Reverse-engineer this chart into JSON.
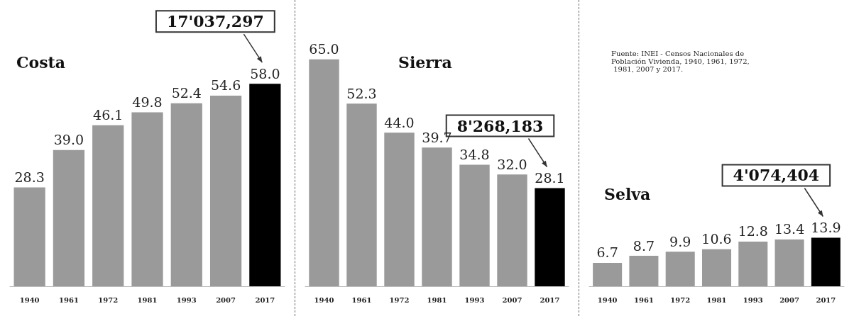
{
  "chart_data": [
    {
      "type": "bar",
      "title": "Costa",
      "categories": [
        "1940",
        "1961",
        "1972",
        "1981",
        "1993",
        "2007",
        "2017"
      ],
      "values": [
        28.3,
        39.0,
        46.1,
        49.8,
        52.4,
        54.6,
        58.0
      ],
      "value_labels": [
        "28.3",
        "39.0",
        "46.1",
        "49.8",
        "52.4",
        "54.6",
        "58.0"
      ],
      "colors": [
        "#9a9a9a",
        "#9a9a9a",
        "#9a9a9a",
        "#9a9a9a",
        "#9a9a9a",
        "#9a9a9a",
        "#000000"
      ],
      "tick_labels": "x",
      "annotations": [
        "17'037,297"
      ]
    },
    {
      "type": "bar",
      "title": "Sierra",
      "categories": [
        "1940",
        "1961",
        "1972",
        "1981",
        "1993",
        "2007",
        "2017"
      ],
      "values": [
        65.0,
        52.3,
        44.0,
        39.7,
        34.8,
        32.0,
        28.1
      ],
      "value_labels": [
        "65.0",
        "52.3",
        "44.0",
        "39.7",
        "34.8",
        "32.0",
        "28.1"
      ],
      "colors": [
        "#9a9a9a",
        "#9a9a9a",
        "#9a9a9a",
        "#9a9a9a",
        "#9a9a9a",
        "#9a9a9a",
        "#000000"
      ],
      "tick_labels": "x",
      "annotations": [
        "8'268,183"
      ]
    },
    {
      "type": "bar",
      "title": "Selva",
      "categories": [
        "1940",
        "1961",
        "1972",
        "1981",
        "1993",
        "2007",
        "2017"
      ],
      "values": [
        6.7,
        8.7,
        9.9,
        10.6,
        12.8,
        13.4,
        13.9
      ],
      "value_labels": [
        "6.7",
        "8.7",
        "9.9",
        "10.6",
        "12.8",
        "13.4",
        "13.9"
      ],
      "colors": [
        "#9a9a9a",
        "#9a9a9a",
        "#9a9a9a",
        "#9a9a9a",
        "#9a9a9a",
        "#9a9a9a",
        "#000000"
      ],
      "tick_labels": "x",
      "annotations": [
        "4'074,404",
        "Fuente: INEI - Censos Nacionales de Población Vivienda, 1940, 1961, 1972, 1981, 2007 y 2017."
      ]
    }
  ]
}
